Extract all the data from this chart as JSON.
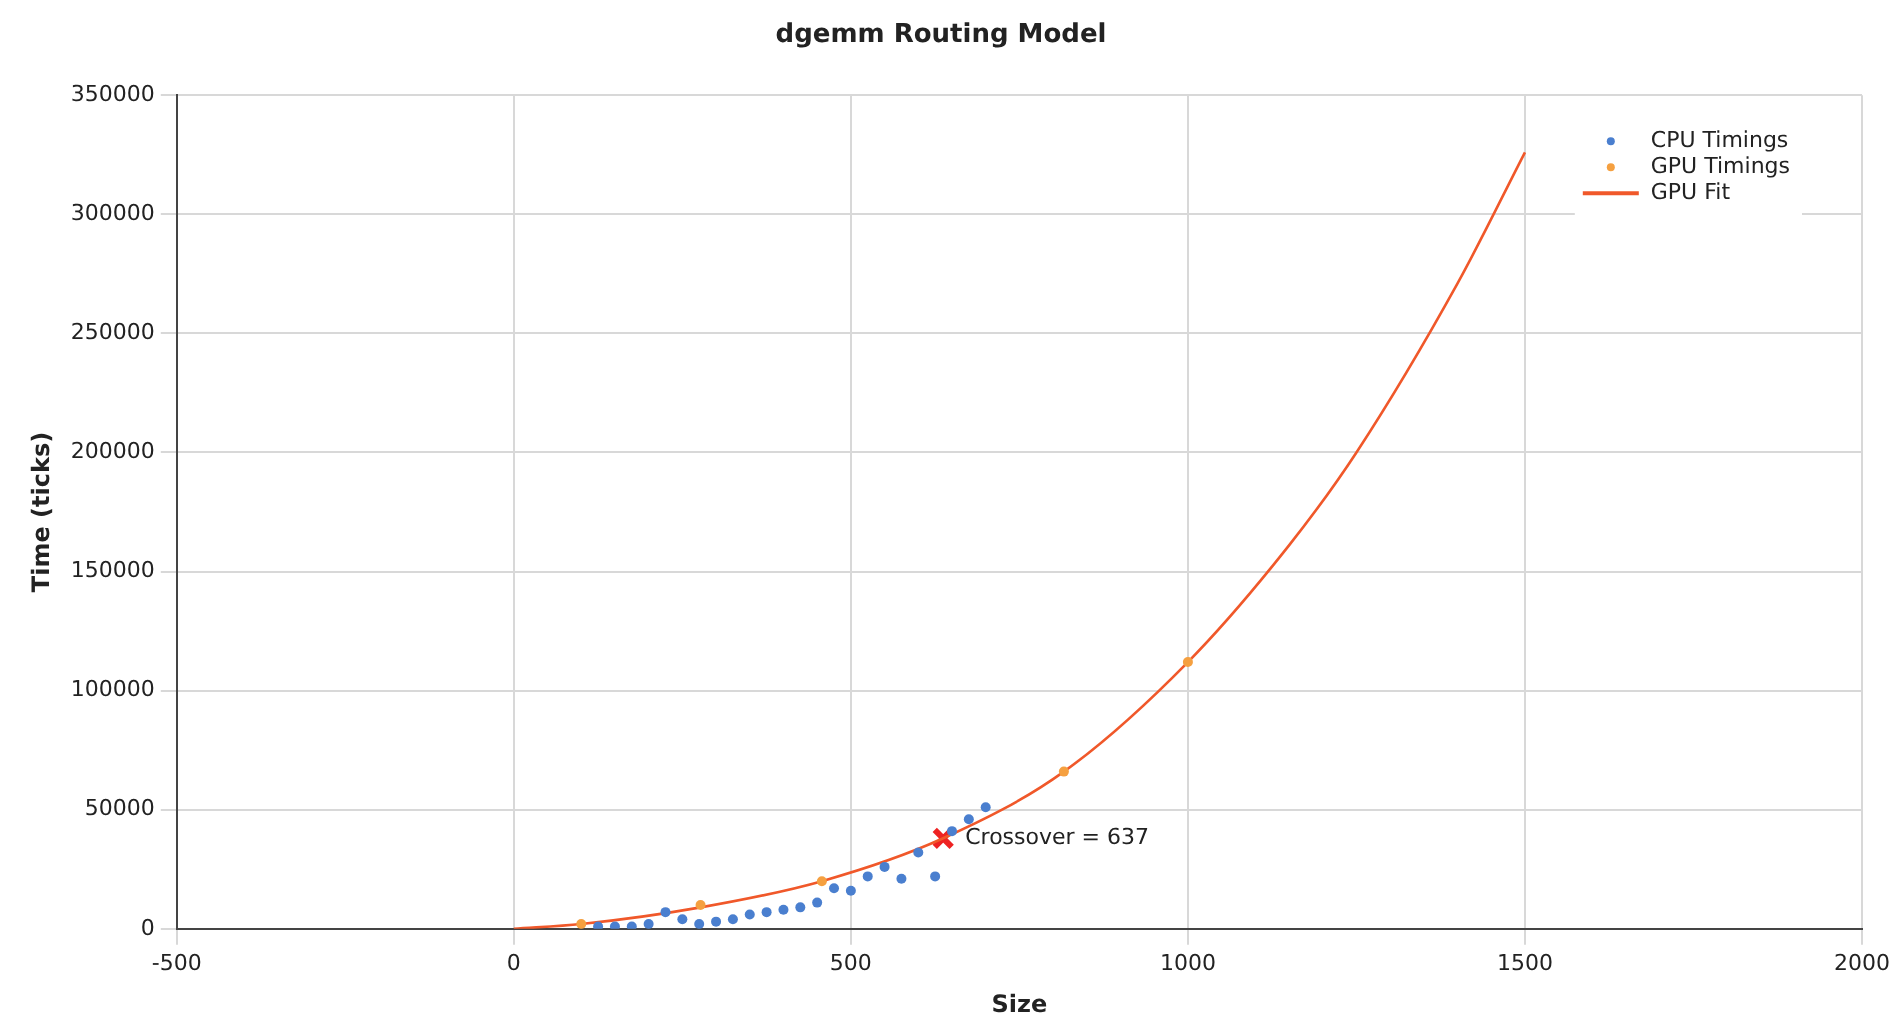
{
  "chart_data": {
    "type": "scatter",
    "title": "dgemm Routing Model",
    "xlabel": "Size",
    "ylabel": "Time (ticks)",
    "xlim": [
      -500,
      2000
    ],
    "xticks": [
      -500,
      0,
      500,
      1000,
      1500,
      2000
    ],
    "ylim": [
      0,
      350000
    ],
    "yticks": [
      0,
      50000,
      100000,
      150000,
      200000,
      250000,
      300000,
      350000
    ],
    "grid": true,
    "legend": "top right",
    "marker": "circle",
    "series": [
      {
        "name": "CPU Timings",
        "type": "scatter",
        "color": "#4a7fcf",
        "x": [
          125,
          150,
          175,
          200,
          225,
          250,
          275,
          300,
          325,
          350,
          375,
          400,
          425,
          450,
          475,
          500,
          525,
          550,
          575,
          600,
          625,
          650,
          675,
          700
        ],
        "values": [
          1000,
          1000,
          1000,
          2000,
          7000,
          4000,
          2000,
          3000,
          4000,
          6000,
          7000,
          8000,
          9000,
          11000,
          17000,
          16000,
          22000,
          26000,
          21000,
          32000,
          22000,
          41000,
          46000,
          51000
        ]
      },
      {
        "name": "GPU Timings",
        "type": "scatter",
        "color": "#f5a040",
        "x": [
          100,
          277,
          457,
          816,
          1000
        ],
        "values": [
          2000,
          10000,
          20000,
          66000,
          112000
        ]
      },
      {
        "name": "GPU Fit",
        "type": "line",
        "color": "#f0582a",
        "marker": "none",
        "x": [
          0,
          100,
          277,
          457,
          637,
          816,
          1000,
          1150,
          1250,
          1400,
          1500
        ],
        "values": [
          0,
          2000,
          9000,
          20000,
          38000,
          66000,
          112000,
          161000,
          200000,
          271000,
          326000
        ]
      },
      {
        "type": "scatter",
        "color": "#ee2222",
        "marker": "cross",
        "x": [
          637
        ],
        "values": [
          38000
        ]
      }
    ],
    "annotations": [
      {
        "text": "Crossover = 637",
        "x": 637,
        "y": 38000
      }
    ]
  }
}
